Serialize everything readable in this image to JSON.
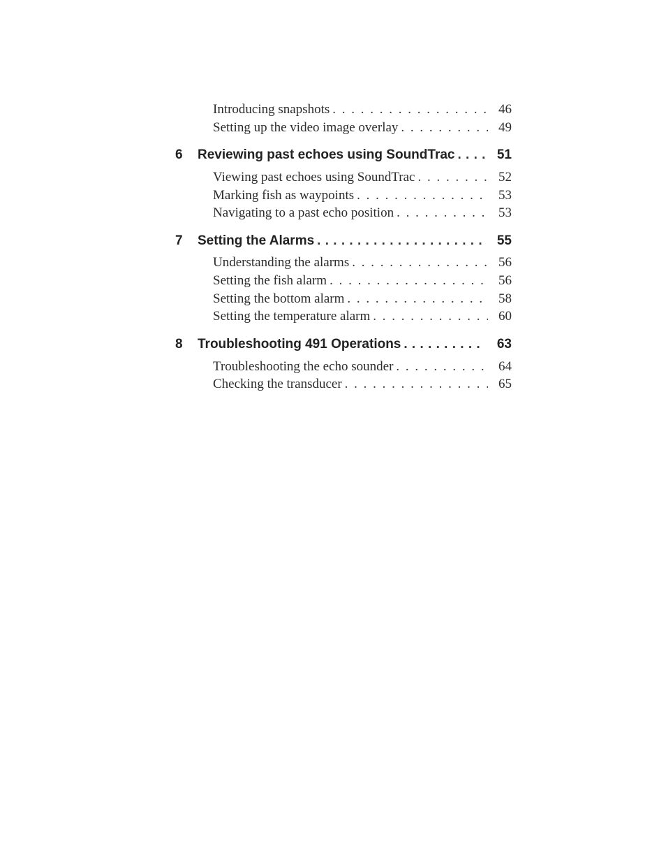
{
  "toc": {
    "intro_items": [
      {
        "title": "Introducing snapshots",
        "page": "46"
      },
      {
        "title": "Setting up the video image overlay",
        "page": "49"
      }
    ],
    "sections": [
      {
        "num": "6",
        "title": "Reviewing past echoes using SoundTrac",
        "page": "51",
        "items": [
          {
            "title": "Viewing past echoes using SoundTrac",
            "page": "52"
          },
          {
            "title": "Marking fish as waypoints",
            "page": "53"
          },
          {
            "title": "Navigating to a past echo position",
            "page": "53"
          }
        ]
      },
      {
        "num": "7",
        "title": "Setting the Alarms",
        "page": "55",
        "items": [
          {
            "title": "Understanding the alarms",
            "page": "56"
          },
          {
            "title": "Setting the fish alarm",
            "page": "56"
          },
          {
            "title": "Setting the bottom alarm",
            "page": "58"
          },
          {
            "title": "Setting the temperature alarm",
            "page": "60"
          }
        ]
      },
      {
        "num": "8",
        "title": "Troubleshooting 491 Operations",
        "page": "63",
        "items": [
          {
            "title": "Troubleshooting the echo sounder",
            "page": "64"
          },
          {
            "title": "Checking the transducer",
            "page": "65"
          }
        ]
      }
    ]
  }
}
